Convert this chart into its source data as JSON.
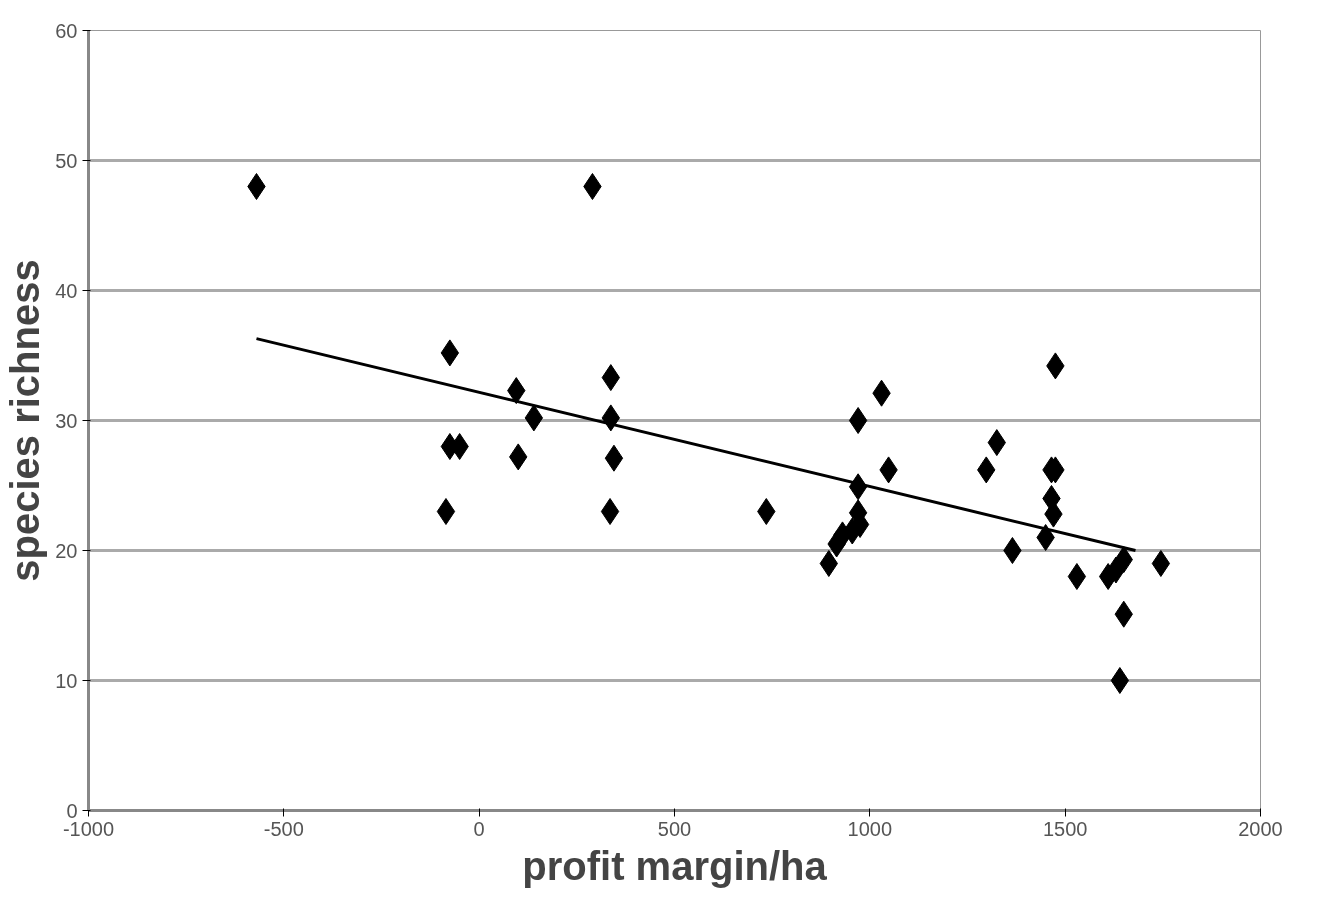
{
  "chart_data": {
    "type": "scatter",
    "xlabel": "profit margin/ha",
    "ylabel": "species richness",
    "xlim": [
      -1000,
      2000
    ],
    "xticks": [
      -1000,
      -500,
      0,
      500,
      1000,
      1500,
      2000
    ],
    "ylim": [
      0,
      60
    ],
    "yticks": [
      0,
      10,
      20,
      30,
      40,
      50,
      60
    ],
    "grid": "y",
    "series": [
      {
        "marker": "diamond",
        "color": "#000000",
        "x": [
          -570,
          290,
          -75,
          -85,
          -75,
          -50,
          95,
          100,
          140,
          337,
          337,
          345,
          335,
          735,
          895,
          915,
          930,
          955,
          975,
          970,
          970,
          970,
          1030,
          1048,
          1298,
          1325,
          1365,
          1450,
          1465,
          1475,
          1465,
          1470,
          1475,
          1530,
          1610,
          1630,
          1650,
          1745,
          1650,
          1640
        ],
        "values": [
          48,
          48,
          35.2,
          23,
          28,
          28,
          32.3,
          27.2,
          30.2,
          33.3,
          30.2,
          27.1,
          23,
          23,
          19,
          20.5,
          21.2,
          21.5,
          22,
          22.9,
          24.9,
          30,
          32.1,
          26.2,
          26.2,
          28.3,
          20,
          21,
          26.2,
          34.2,
          24,
          22.8,
          26.2,
          18,
          18,
          18.5,
          19.3,
          19,
          15.1,
          10
        ]
      },
      {
        "type": "line",
        "marker": "none",
        "color": "#000000",
        "x": [
          -570,
          1680
        ],
        "values": [
          36.3,
          20.0
        ]
      }
    ]
  }
}
